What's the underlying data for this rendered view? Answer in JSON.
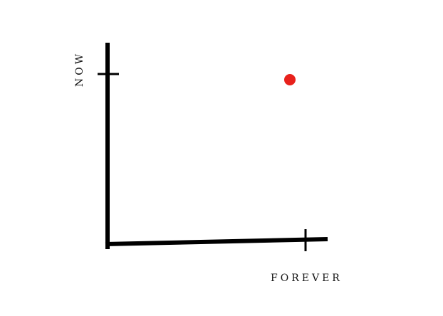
{
  "chart_data": {
    "type": "scatter",
    "title": "",
    "xlabel": "FOREVER",
    "ylabel": "NOW",
    "grid": false,
    "legend": "none",
    "x_tick_labels": [
      ""
    ],
    "y_tick_labels": [
      ""
    ],
    "points": [
      {
        "x": 1,
        "y": 1
      }
    ],
    "colors": {
      "axis": "#000000",
      "point": "#e8211c",
      "label": "#111111"
    }
  }
}
